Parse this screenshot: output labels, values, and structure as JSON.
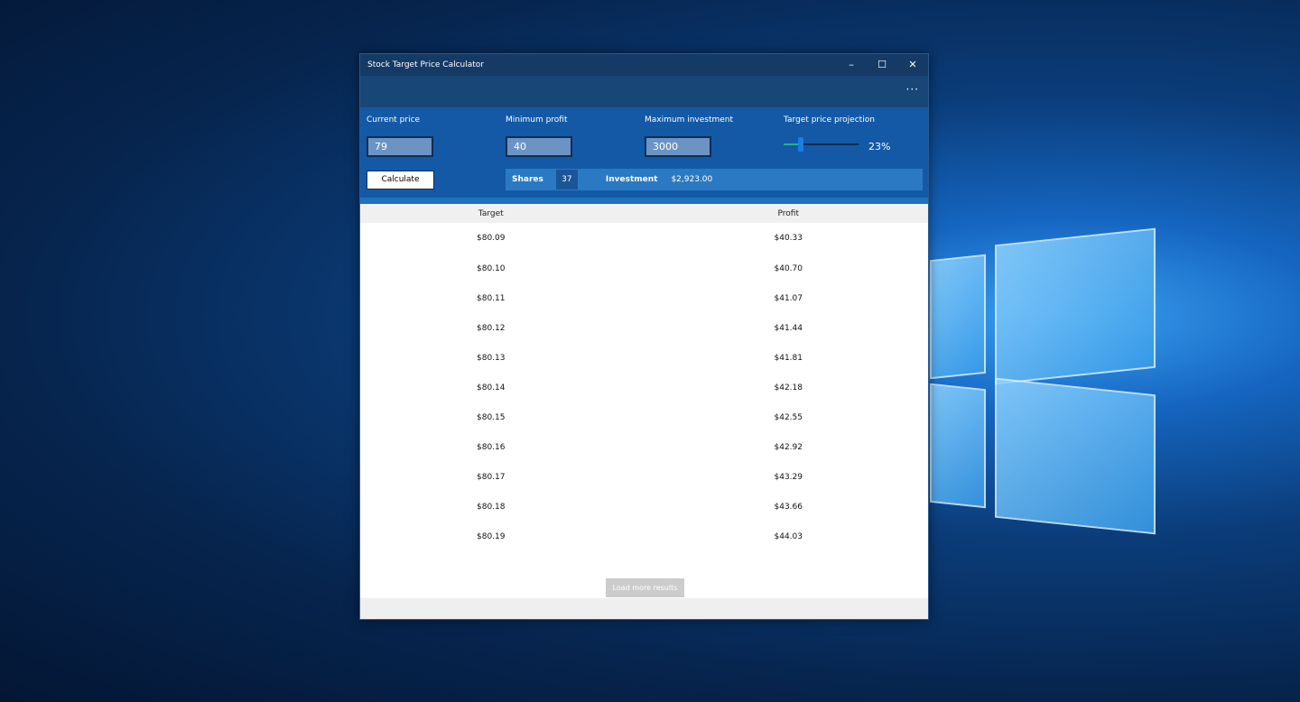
{
  "window": {
    "title": "Stock Target Price Calculator",
    "minimize": "–",
    "maximize": "☐",
    "close": "✕",
    "more": "···"
  },
  "form": {
    "current_price": {
      "label": "Current price",
      "value": "79"
    },
    "minimum_profit": {
      "label": "Minimum profit",
      "value": "40"
    },
    "maximum_investment": {
      "label": "Maximum investment",
      "value": "3000"
    },
    "projection": {
      "label": "Target price projection",
      "value_text": "23%",
      "value": 23
    },
    "calculate": "Calculate",
    "shares_label": "Shares",
    "shares": "37",
    "investment_label": "Investment",
    "investment": "$2,923.00"
  },
  "table": {
    "headers": [
      "Target",
      "Profit"
    ],
    "rows": [
      [
        "$80.09",
        "$40.33"
      ],
      [
        "$80.10",
        "$40.70"
      ],
      [
        "$80.11",
        "$41.07"
      ],
      [
        "$80.12",
        "$41.44"
      ],
      [
        "$80.13",
        "$41.81"
      ],
      [
        "$80.14",
        "$42.18"
      ],
      [
        "$80.15",
        "$42.55"
      ],
      [
        "$80.16",
        "$42.92"
      ],
      [
        "$80.17",
        "$43.29"
      ],
      [
        "$80.18",
        "$43.66"
      ],
      [
        "$80.19",
        "$44.03"
      ]
    ]
  },
  "load_more": "Load more results"
}
